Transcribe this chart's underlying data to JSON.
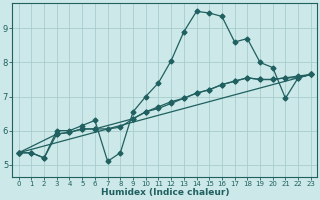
{
  "xlabel": "Humidex (Indice chaleur)",
  "bg_color": "#cce8e8",
  "grid_color": "#a8cccc",
  "line_color": "#206060",
  "xlim": [
    -0.5,
    23.5
  ],
  "ylim": [
    4.65,
    9.75
  ],
  "xticks": [
    0,
    1,
    2,
    3,
    4,
    5,
    6,
    7,
    8,
    9,
    10,
    11,
    12,
    13,
    14,
    15,
    16,
    17,
    18,
    19,
    20,
    21,
    22,
    23
  ],
  "yticks": [
    5,
    6,
    7,
    8,
    9
  ],
  "line1_x": [
    0,
    1,
    2,
    3,
    4,
    5,
    6,
    7,
    8,
    9,
    10,
    11,
    12,
    13,
    14,
    15,
    16,
    17,
    18,
    19,
    20,
    21,
    22,
    23
  ],
  "line1_y": [
    5.35,
    5.35,
    5.2,
    6.0,
    6.0,
    6.15,
    6.3,
    5.1,
    5.35,
    6.55,
    7.0,
    7.4,
    8.05,
    8.9,
    9.5,
    9.45,
    9.35,
    8.6,
    8.7,
    8.0,
    7.85,
    6.95,
    7.55,
    7.65
  ],
  "line2_x": [
    0,
    1,
    2,
    3,
    4,
    5,
    6,
    7,
    8,
    9,
    10,
    11,
    12,
    13,
    14,
    15,
    16,
    17,
    18,
    19,
    20,
    21,
    22,
    23
  ],
  "line2_y": [
    5.35,
    5.35,
    5.2,
    5.9,
    5.95,
    6.05,
    6.05,
    6.05,
    6.1,
    6.35,
    6.55,
    6.7,
    6.85,
    6.95,
    7.1,
    7.2,
    7.35,
    7.45,
    7.55,
    7.5,
    7.5,
    7.55,
    7.6,
    7.65
  ],
  "line3_x": [
    0,
    3,
    4,
    5,
    6,
    9,
    10,
    11,
    12,
    13,
    14,
    15,
    16,
    17,
    18,
    19,
    20,
    21,
    22,
    23
  ],
  "line3_y": [
    5.35,
    5.9,
    5.95,
    6.05,
    6.05,
    6.35,
    6.55,
    6.65,
    6.8,
    6.95,
    7.1,
    7.2,
    7.35,
    7.45,
    7.55,
    7.5,
    7.5,
    7.55,
    7.55,
    7.65
  ],
  "line4_x": [
    0,
    23
  ],
  "line4_y": [
    5.35,
    7.65
  ]
}
